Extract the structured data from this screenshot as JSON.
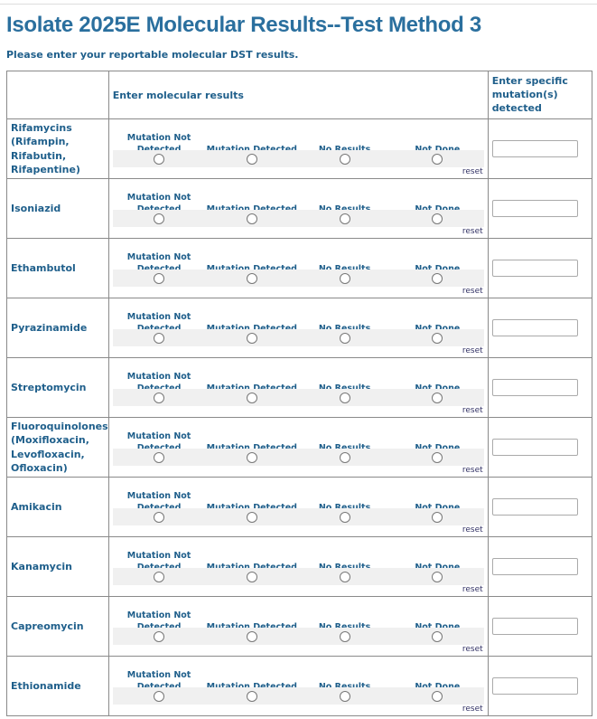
{
  "title": "Isolate 2025E Molecular Results--Test Method 3",
  "subtitle": "Please enter your reportable molecular DST results.",
  "header": {
    "results": "Enter molecular results",
    "mutations": "Enter specific mutation(s) detected"
  },
  "options": [
    "Mutation Not Detected",
    "Mutation Detected",
    "No Results",
    "Not Done"
  ],
  "reset_label": "reset",
  "drugs": [
    "Rifamycins (Rifampin, Rifabutin, Rifapentine)",
    "Isoniazid",
    "Ethambutol",
    "Pyrazinamide",
    "Streptomycin",
    "Fluoroquinolones (Moxifloxacin, Levofloxacin, Ofloxacin)",
    "Amikacin",
    "Kanamycin",
    "Capreomycin",
    "Ethionamide"
  ]
}
